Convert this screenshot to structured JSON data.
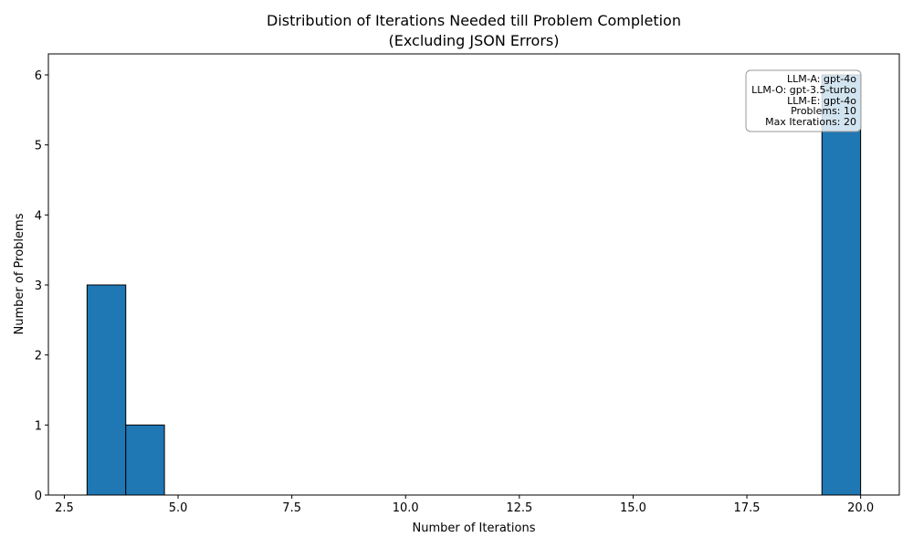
{
  "chart_data": {
    "type": "bar",
    "title": "Distribution of Iterations Needed till Problem Completion",
    "subtitle": "(Excluding JSON Errors)",
    "xlabel": "Number of Iterations",
    "ylabel": "Number of Problems",
    "xlim": [
      2.15,
      20.85
    ],
    "ylim": [
      0,
      6.3
    ],
    "xticks": [
      2.5,
      5.0,
      7.5,
      10.0,
      12.5,
      15.0,
      17.5,
      20.0
    ],
    "xtick_labels": [
      "2.5",
      "5.0",
      "7.5",
      "10.0",
      "12.5",
      "15.0",
      "17.5",
      "20.0"
    ],
    "yticks": [
      0,
      1,
      2,
      3,
      4,
      5,
      6
    ],
    "ytick_labels": [
      "0",
      "1",
      "2",
      "3",
      "4",
      "5",
      "6"
    ],
    "grid": false,
    "bar_color": "#1f77b4",
    "bar_edge_color": "#000000",
    "bins": [
      {
        "x0": 3.0,
        "x1": 3.85,
        "count": 3
      },
      {
        "x0": 3.85,
        "x1": 4.7,
        "count": 1
      },
      {
        "x0": 19.15,
        "x1": 20.0,
        "count": 6
      }
    ],
    "annotation": {
      "placement": "top-right",
      "lines": [
        "LLM-A: gpt-4o",
        "LLM-O: gpt-3.5-turbo",
        "LLM-E: gpt-4o",
        "Problems: 10",
        "Max Iterations: 20"
      ]
    }
  }
}
